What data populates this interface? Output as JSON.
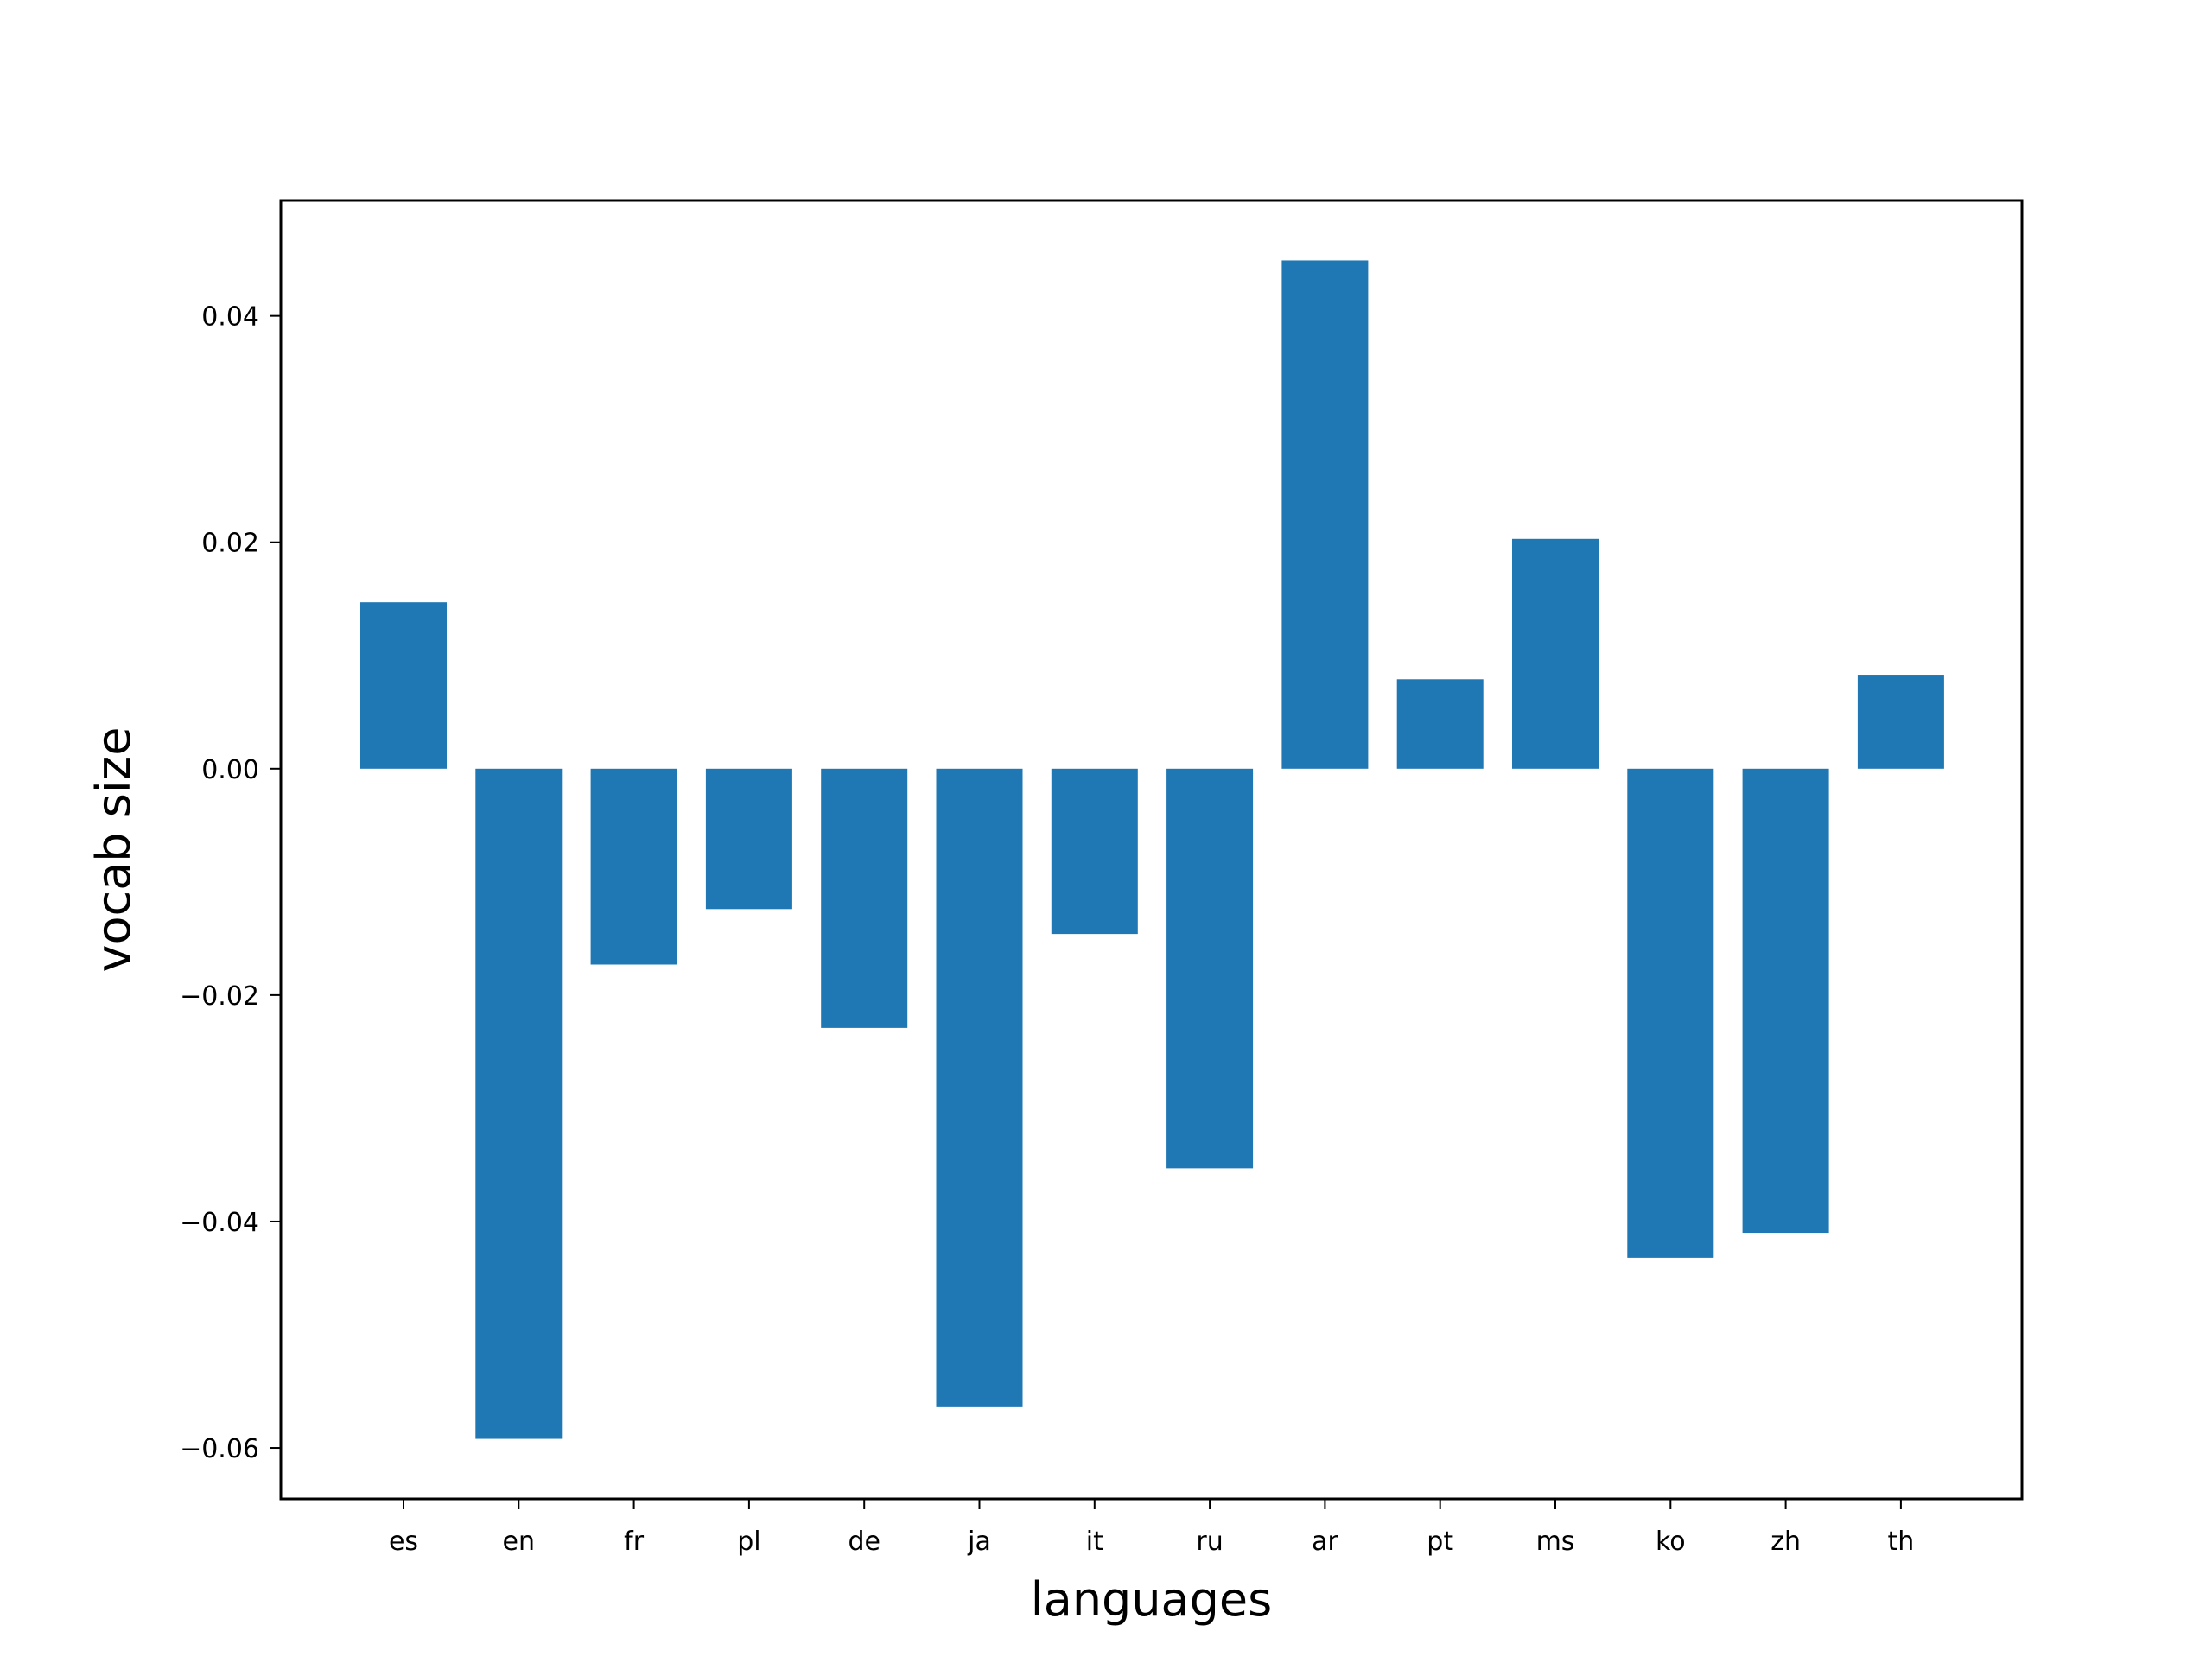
{
  "chart_data": {
    "type": "bar",
    "title": "",
    "xlabel": "languages",
    "ylabel": "vocab size",
    "categories": [
      "es",
      "en",
      "fr",
      "pl",
      "de",
      "ja",
      "it",
      "ru",
      "ar",
      "pt",
      "ms",
      "ko",
      "zh",
      "th"
    ],
    "values": [
      0.0147,
      -0.0592,
      -0.0173,
      -0.0124,
      -0.0229,
      -0.0564,
      -0.0146,
      -0.0353,
      0.0449,
      0.0079,
      0.0203,
      -0.0432,
      -0.041,
      0.0083
    ],
    "ylim": [
      -0.0645,
      0.0502
    ],
    "yticks": [
      0.04,
      0.02,
      0.0,
      -0.02,
      -0.04,
      -0.06
    ],
    "ytick_labels": [
      "0.04",
      "0.02",
      "0.00",
      "−0.02",
      "−0.04",
      "−0.06"
    ],
    "grid": false,
    "legend": "none",
    "bar_color": "#1f77b4"
  }
}
